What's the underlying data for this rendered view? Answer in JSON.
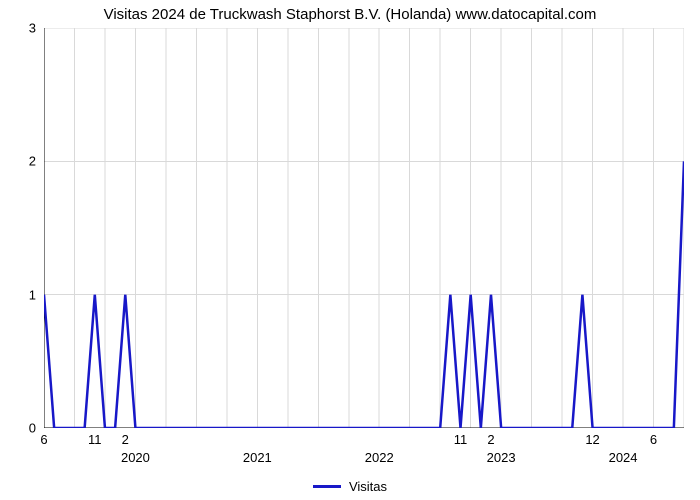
{
  "title": "Visitas 2024 de Truckwash Staphorst B.V. (Holanda) www.datocapital.com",
  "chart": {
    "type": "line",
    "background_color": "#ffffff",
    "grid_color": "#d9d9d9",
    "axis_color": "#000000",
    "title_fontsize": 15,
    "label_fontsize": 13,
    "x_domain_min": 0,
    "x_domain_max": 63,
    "y_domain_min": 0,
    "y_domain_max": 3,
    "y_ticks": [
      0,
      1,
      2,
      3
    ],
    "x_major_every": 3,
    "x_month_labels": [
      {
        "x": 0,
        "text": "6"
      },
      {
        "x": 5,
        "text": "11"
      },
      {
        "x": 8,
        "text": "2"
      },
      {
        "x": 41,
        "text": "11"
      },
      {
        "x": 44,
        "text": "2"
      },
      {
        "x": 54,
        "text": "12"
      },
      {
        "x": 60,
        "text": "6"
      }
    ],
    "x_year_labels": [
      {
        "x": 9,
        "text": "2020"
      },
      {
        "x": 21,
        "text": "2021"
      },
      {
        "x": 33,
        "text": "2022"
      },
      {
        "x": 45,
        "text": "2023"
      },
      {
        "x": 57,
        "text": "2024"
      }
    ],
    "series": {
      "name": "Visitas",
      "color": "#1818c8",
      "line_width": 2.5,
      "points": [
        [
          0,
          1
        ],
        [
          1,
          0
        ],
        [
          4,
          0
        ],
        [
          5,
          1
        ],
        [
          6,
          0
        ],
        [
          7,
          0
        ],
        [
          8,
          1
        ],
        [
          9,
          0
        ],
        [
          39,
          0
        ],
        [
          40,
          1
        ],
        [
          41,
          0
        ],
        [
          42,
          1
        ],
        [
          43,
          0
        ],
        [
          44,
          1
        ],
        [
          45,
          0
        ],
        [
          52,
          0
        ],
        [
          53,
          1
        ],
        [
          54,
          0
        ],
        [
          62,
          0
        ],
        [
          63,
          2
        ]
      ]
    },
    "legend": {
      "label": "Visitas",
      "swatch_color": "#1818c8"
    }
  }
}
